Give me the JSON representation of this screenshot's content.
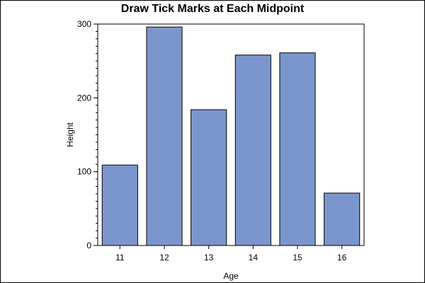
{
  "chart_data": {
    "type": "bar",
    "title": "Draw Tick Marks at Each Midpoint",
    "xlabel": "Age",
    "ylabel": "Height",
    "categories": [
      "11",
      "12",
      "13",
      "14",
      "15",
      "16"
    ],
    "values": [
      109,
      296,
      184,
      258,
      261,
      71
    ],
    "ylim": [
      0,
      300
    ],
    "yticks": [
      "0",
      "100",
      "200",
      "300"
    ],
    "minor_ticks_per_major": 10,
    "grid": false,
    "legend": "none",
    "bar_color": "#7b96cc",
    "bar_outline_color": "#000000"
  }
}
